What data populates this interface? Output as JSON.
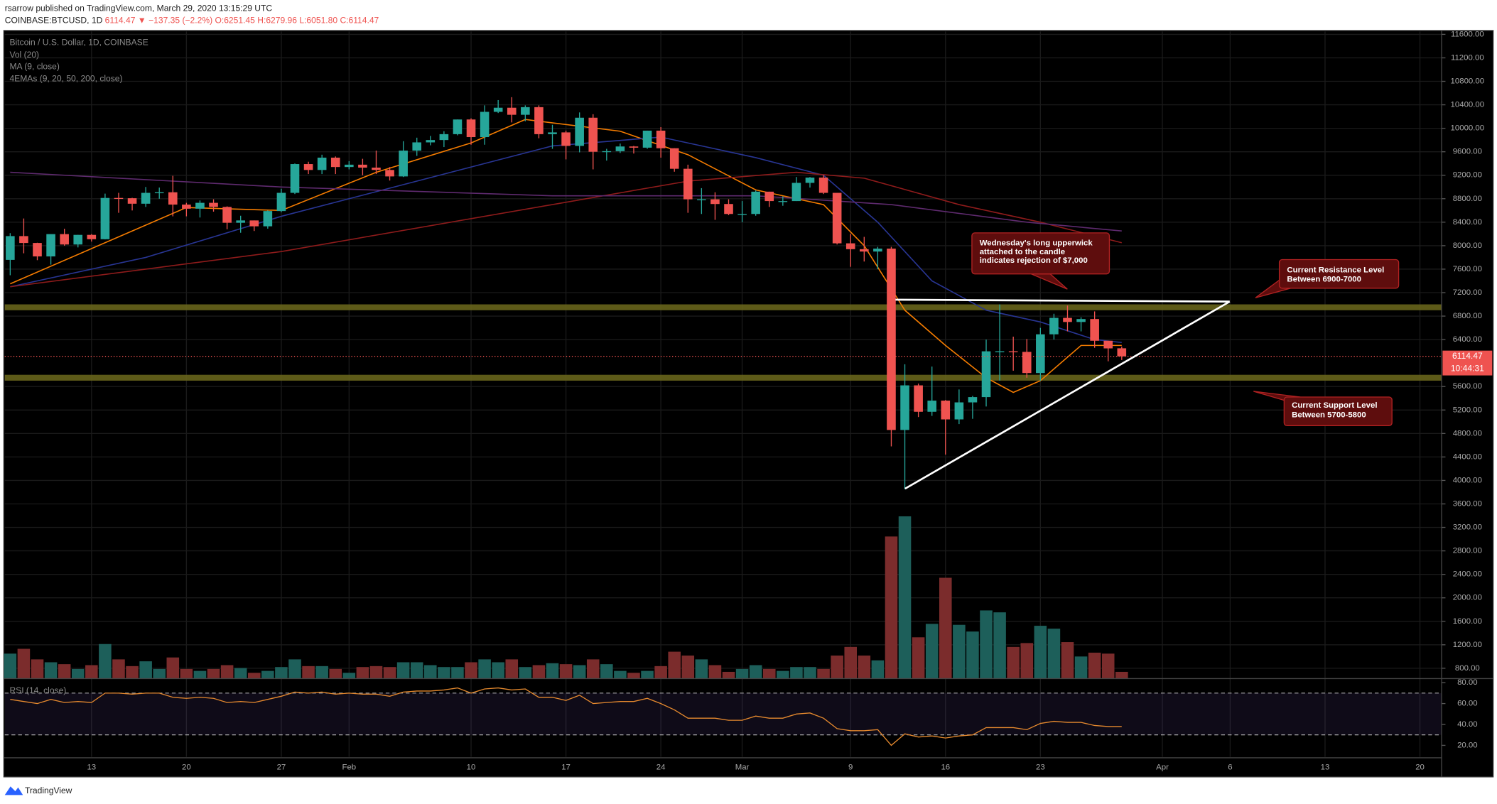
{
  "header": {
    "author_line": "rsarrow published on TradingView.com, March 29, 2020 13:15:29 UTC",
    "symbol": "COINBASE:BTCUSD, 1D",
    "last": "6114.47",
    "change": "▼ −137.35 (−2.2%)",
    "ohlc": [
      "O:6251.45",
      "H:6279.96",
      "L:6051.80",
      "C:6114.47"
    ]
  },
  "chart_data": [
    {
      "type": "candlestick",
      "title": "Bitcoin / U.S. Dollar, 1D, COINBASE",
      "indicators": [
        "Vol (20)",
        "MA (9, close)",
        "4EMAs (9, 20, 50, 200, close)"
      ],
      "up_color": "#26a69a",
      "down_color": "#ef5350",
      "open": [
        7758,
        8163,
        8046,
        7817,
        8197,
        8020,
        8184,
        8110,
        8813,
        8808,
        8715,
        8900,
        8910,
        8700,
        8630,
        8730,
        8660,
        8390,
        8430,
        8330,
        8590,
        8900,
        9390,
        9290,
        9500,
        9340,
        9380,
        9330,
        9290,
        9180,
        9620,
        9760,
        9800,
        9900,
        10150,
        9850,
        10280,
        10350,
        10230,
        10360,
        9900,
        9930,
        9700,
        10180,
        9600,
        9610,
        9690,
        9670,
        9960,
        9660,
        9310,
        8790,
        8790,
        8710,
        8540,
        8540,
        8920,
        8760,
        8760,
        9070,
        9160,
        8900,
        8040,
        7940,
        7900,
        7950,
        4860,
        5620,
        5170,
        5360,
        5040,
        5330,
        5420,
        6200,
        6200,
        6190,
        5830,
        6490,
        6770,
        6700,
        6750,
        6380,
        6251.45
      ],
      "high": [
        8213,
        8463,
        8050,
        8195,
        8288,
        8184,
        8197,
        8887,
        8900,
        8815,
        9000,
        8990,
        9190,
        8730,
        8770,
        8790,
        8670,
        8510,
        8430,
        8600,
        8970,
        9400,
        9430,
        9550,
        9520,
        9440,
        9480,
        9620,
        9340,
        9780,
        9840,
        9870,
        9950,
        10150,
        10170,
        10390,
        10480,
        10530,
        10390,
        10390,
        10060,
        9960,
        10270,
        10240,
        9650,
        9740,
        9700,
        9960,
        10020,
        9660,
        9380,
        8980,
        8910,
        8790,
        8760,
        8940,
        8920,
        8840,
        9170,
        9170,
        9200,
        8900,
        8200,
        8150,
        7980,
        7980,
        5980,
        5650,
        5940,
        5370,
        5550,
        5440,
        6400,
        7000,
        6450,
        6410,
        6600,
        6840,
        6980,
        6780,
        6880,
        6380,
        6279.96
      ],
      "low": [
        7496,
        7870,
        7753,
        7677,
        8000,
        7970,
        8070,
        8107,
        8560,
        8600,
        8660,
        8800,
        8500,
        8500,
        8480,
        8580,
        8280,
        8220,
        8250,
        8290,
        8570,
        8880,
        9220,
        9220,
        9220,
        9300,
        9200,
        9220,
        9110,
        9170,
        9530,
        9710,
        9680,
        9880,
        9720,
        9720,
        10260,
        10100,
        10120,
        9830,
        9650,
        9470,
        9590,
        9300,
        9450,
        9580,
        9570,
        9650,
        9500,
        9260,
        8560,
        8540,
        8440,
        8520,
        8400,
        8510,
        8660,
        8680,
        8760,
        8990,
        8880,
        8020,
        7640,
        7730,
        7600,
        4580,
        3850,
        5080,
        5100,
        4440,
        4960,
        5050,
        5260,
        5700,
        5870,
        5750,
        5700,
        6400,
        6540,
        6540,
        6260,
        6030,
        6051.8
      ],
      "close": [
        8163,
        8046,
        7817,
        8197,
        8020,
        8184,
        8110,
        8813,
        8808,
        8715,
        8900,
        8910,
        8700,
        8630,
        8730,
        8660,
        8390,
        8430,
        8330,
        8590,
        8900,
        9390,
        9290,
        9500,
        9340,
        9380,
        9330,
        9290,
        9180,
        9620,
        9760,
        9800,
        9900,
        10150,
        9850,
        10280,
        10350,
        10230,
        10360,
        9900,
        9930,
        9700,
        10180,
        9600,
        9610,
        9690,
        9670,
        9960,
        9660,
        9310,
        8790,
        8790,
        8710,
        8540,
        8540,
        8920,
        8760,
        8760,
        9070,
        9160,
        8900,
        8040,
        7940,
        7900,
        7950,
        4860,
        5620,
        5170,
        5360,
        5040,
        5330,
        5420,
        6200,
        6200,
        6190,
        5830,
        6490,
        6770,
        6700,
        6750,
        6380,
        6250,
        6114.47
      ],
      "lines": [
        {
          "color": "#f57c00",
          "x": [
            0,
            6,
            13,
            20,
            27,
            34,
            38,
            45,
            50,
            55,
            60,
            63,
            66,
            69,
            72,
            74,
            76,
            79,
            82
          ],
          "values": [
            7350,
            7950,
            8650,
            8600,
            9250,
            9750,
            10150,
            9950,
            9550,
            8950,
            8700,
            8000,
            6900,
            6300,
            5750,
            5500,
            5700,
            6300,
            6300
          ]
        },
        {
          "color": "#283593",
          "x": [
            0,
            10,
            20,
            30,
            40,
            48,
            55,
            60,
            64,
            68,
            72,
            76,
            80,
            82
          ],
          "values": [
            7300,
            7800,
            8500,
            9100,
            9700,
            9850,
            9500,
            9200,
            8400,
            7400,
            6900,
            6700,
            6400,
            6350
          ]
        },
        {
          "color": "#8e1b1b",
          "x": [
            0,
            20,
            40,
            50,
            58,
            63,
            70,
            76,
            82
          ],
          "values": [
            7300,
            7900,
            8700,
            9100,
            9250,
            9150,
            8700,
            8400,
            8050
          ]
        },
        {
          "color": "#5e2a6e",
          "x": [
            0,
            20,
            40,
            55,
            65,
            75,
            82
          ],
          "values": [
            9250,
            9000,
            8850,
            8850,
            8700,
            8400,
            8250
          ]
        }
      ],
      "bands": [
        [
          6900,
          7000
        ],
        [
          5700,
          5800
        ]
      ],
      "countdown": "10:44:31",
      "annotations": [
        {
          "lines": [
            "Wednesday's long upperwick",
            "attached to the candle",
            "indicates rejection of $7,000"
          ]
        },
        {
          "lines": [
            "Current Resistance Level",
            "Between 6900-7000"
          ]
        },
        {
          "lines": [
            "Current Support Level",
            "Between 5700-5800"
          ]
        }
      ],
      "xlim": [
        -0.4,
        105.6
      ],
      "xticks": [
        {
          "value": 6,
          "label": "13"
        },
        {
          "value": 13,
          "label": "20"
        },
        {
          "value": 20,
          "label": "27"
        },
        {
          "value": 25,
          "label": "Feb"
        },
        {
          "value": 34,
          "label": "10"
        },
        {
          "value": 41,
          "label": "17"
        },
        {
          "value": 48,
          "label": "24"
        },
        {
          "value": 54,
          "label": "Mar"
        },
        {
          "value": 62,
          "label": "9"
        },
        {
          "value": 69,
          "label": "16"
        },
        {
          "value": 76,
          "label": "23"
        },
        {
          "value": 85,
          "label": "Apr"
        },
        {
          "value": 90,
          "label": "6"
        },
        {
          "value": 97,
          "label": "13"
        },
        {
          "value": 104,
          "label": "20"
        }
      ],
      "ylim": [
        624,
        11649
      ],
      "yticks": [
        {
          "value": 800,
          "label": "800.00"
        },
        {
          "value": 1200,
          "label": "1200.00"
        },
        {
          "value": 1600,
          "label": "1600.00"
        },
        {
          "value": 2000,
          "label": "2000.00"
        },
        {
          "value": 2400,
          "label": "2400.00"
        },
        {
          "value": 2800,
          "label": "2800.00"
        },
        {
          "value": 3200,
          "label": "3200.00"
        },
        {
          "value": 3600,
          "label": "3600.00"
        },
        {
          "value": 4000,
          "label": "4000.00"
        },
        {
          "value": 4400,
          "label": "4400.00"
        },
        {
          "value": 4800,
          "label": "4800.00"
        },
        {
          "value": 5200,
          "label": "5200.00"
        },
        {
          "value": 5600,
          "label": "5600.00"
        },
        {
          "value": 6400,
          "label": "6400.00"
        },
        {
          "value": 6800,
          "label": "6800.00"
        },
        {
          "value": 7200,
          "label": "7200.00"
        },
        {
          "value": 7600,
          "label": "7600.00"
        },
        {
          "value": 8000,
          "label": "8000.00"
        },
        {
          "value": 8400,
          "label": "8400.00"
        },
        {
          "value": 8800,
          "label": "8800.00"
        },
        {
          "value": 9200,
          "label": "9200.00"
        },
        {
          "value": 9600,
          "label": "9600.00"
        },
        {
          "value": 10000,
          "label": "10000.00"
        },
        {
          "value": 10400,
          "label": "10400.00"
        },
        {
          "value": 10800,
          "label": "10800.00"
        },
        {
          "value": 11200,
          "label": "11200.00"
        },
        {
          "value": 11600,
          "label": "11600.00"
        }
      ],
      "grid": true
    },
    {
      "type": "bar",
      "up_color": "#1d5f5a",
      "down_color": "#7b2c2c",
      "values": [
        7800,
        9300,
        6000,
        5100,
        4500,
        3000,
        4200,
        10800,
        6000,
        3900,
        5400,
        3000,
        6600,
        3000,
        2400,
        3000,
        4200,
        3300,
        1800,
        2400,
        3600,
        6000,
        3900,
        3900,
        3000,
        1800,
        3600,
        3900,
        3600,
        5100,
        5100,
        4200,
        3600,
        3600,
        5100,
        6000,
        5100,
        6000,
        3600,
        4200,
        4800,
        4500,
        4200,
        6000,
        4500,
        2400,
        1800,
        2400,
        3900,
        8400,
        7200,
        6000,
        4200,
        2100,
        3000,
        4200,
        3000,
        2400,
        3600,
        3600,
        3000,
        7200,
        9900,
        7200,
        5700,
        44400,
        50700,
        12900,
        17100,
        31500,
        16800,
        14700,
        21300,
        20700,
        9900,
        11100,
        16500,
        15600,
        11400,
        6900,
        8100,
        7800,
        2100
      ]
    },
    {
      "type": "line",
      "title": "RSI (14, close)",
      "color": "#e5892e",
      "levels": [
        70,
        30
      ],
      "values": [
        64,
        62,
        60,
        64,
        61,
        62,
        61,
        70,
        70,
        69,
        70,
        70,
        66,
        65,
        66,
        65,
        61,
        62,
        61,
        64,
        67,
        71,
        70,
        71,
        69,
        70,
        69,
        69,
        67,
        71,
        72,
        72,
        73,
        75,
        70,
        74,
        75,
        73,
        74,
        66,
        66,
        63,
        68,
        60,
        61,
        62,
        62,
        65,
        60,
        54,
        46,
        46,
        46,
        44,
        44,
        48,
        46,
        46,
        50,
        51,
        46,
        36,
        34,
        34,
        35,
        20,
        31,
        28,
        29,
        27,
        29,
        30,
        37,
        37,
        37,
        35,
        41,
        43,
        42,
        42,
        39,
        38,
        38
      ],
      "ylim": [
        9,
        83
      ],
      "yticks": [
        {
          "value": 20,
          "label": "20.00"
        },
        {
          "value": 40,
          "label": "40.00"
        },
        {
          "value": 60,
          "label": "60.00"
        },
        {
          "value": 80,
          "label": "80.00"
        }
      ]
    }
  ],
  "footer": {
    "brand": "TradingView"
  }
}
